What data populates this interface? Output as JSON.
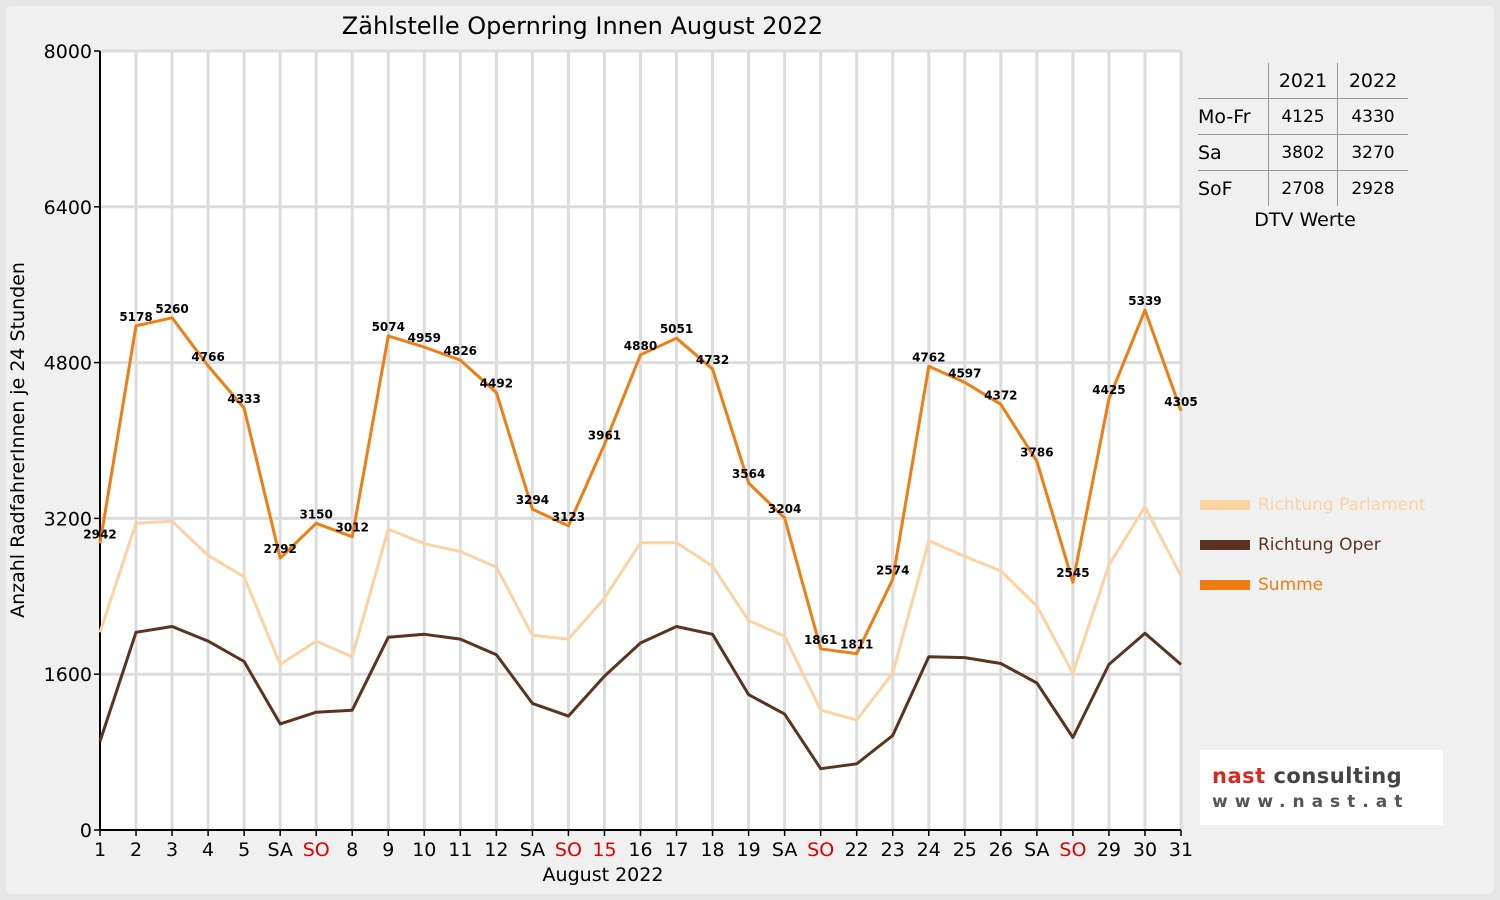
{
  "chart_data": {
    "type": "line",
    "title": "Zählstelle Opernring Innen August 2022",
    "xlabel": "August 2022",
    "ylabel": "Anzahl RadfahrerInnen je 24 Stunden",
    "ylim": [
      0,
      8000
    ],
    "yticks": [
      "0",
      "1600",
      "3200",
      "4800",
      "6400",
      "8000"
    ],
    "categories": [
      "1",
      "2",
      "3",
      "4",
      "5",
      "SA",
      "SO",
      "8",
      "9",
      "10",
      "11",
      "12",
      "SA",
      "SO",
      "15",
      "16",
      "17",
      "18",
      "19",
      "SA",
      "SO",
      "22",
      "23",
      "24",
      "25",
      "26",
      "SA",
      "SO",
      "29",
      "30",
      "31"
    ],
    "highlight_categories": [
      6,
      13,
      14,
      20,
      27
    ],
    "highlight_color": "#e00000",
    "grid": true,
    "legend_position": "right",
    "series": [
      {
        "name": "Richtung Parlament",
        "color": "#fcd3a0",
        "values": [
          2030,
          3150,
          3170,
          2820,
          2600,
          1700,
          1940,
          1780,
          3090,
          2940,
          2860,
          2700,
          2000,
          1960,
          2380,
          2950,
          2950,
          2710,
          2150,
          1990,
          1230,
          1130,
          1610,
          2970,
          2810,
          2660,
          2300,
          1610,
          2720,
          3320,
          2610
        ],
        "labels": []
      },
      {
        "name": "Richtung Oper",
        "color": "#5a3420",
        "values": [
          910,
          2030,
          2090,
          1940,
          1730,
          1090,
          1210,
          1230,
          1980,
          2010,
          1960,
          1800,
          1300,
          1170,
          1580,
          1920,
          2090,
          2010,
          1390,
          1190,
          630,
          680,
          970,
          1780,
          1770,
          1710,
          1510,
          950,
          1700,
          2020,
          1700
        ],
        "labels": []
      },
      {
        "name": "Summe",
        "color": "#f07d12",
        "values": [
          2942,
          5178,
          5260,
          4766,
          4333,
          2792,
          3150,
          3012,
          5074,
          4959,
          4826,
          4492,
          3294,
          3123,
          3961,
          4880,
          5051,
          4732,
          3564,
          3204,
          1861,
          1811,
          2574,
          4762,
          4597,
          4372,
          3786,
          2545,
          4425,
          5339,
          4305
        ],
        "labels": [
          "2942",
          "5178",
          "5260",
          "4766",
          "4333",
          "2792",
          "3150",
          "3012",
          "5074",
          "4959",
          "4826",
          "4492",
          "3294",
          "3123",
          "3961",
          "4880",
          "5051",
          "4732",
          "3564",
          "3204",
          "1861",
          "1811",
          "2574",
          "4762",
          "4597",
          "4372",
          "3786",
          "2545",
          "4425",
          "5339",
          "4305"
        ]
      }
    ]
  },
  "dtv_table": {
    "headers": [
      "",
      "2021",
      "2022"
    ],
    "rows": [
      [
        "Mo-Fr",
        "4125",
        "4330"
      ],
      [
        "Sa",
        "3802",
        "3270"
      ],
      [
        "SoF",
        "2708",
        "2928"
      ]
    ],
    "caption": "DTV Werte"
  },
  "legend": [
    {
      "label": "Richtung Parlament",
      "color": "#fcd3a0",
      "text_color": "#fcd3a0"
    },
    {
      "label": "Richtung Oper",
      "color": "#5a3420",
      "text_color": "#5a3420"
    },
    {
      "label": "Summe",
      "color": "#f07d12",
      "text_color": "#f07d12"
    }
  ],
  "logo": {
    "brand_part1": "nast",
    "brand_part2": " consulting",
    "url": "www.nast.at"
  }
}
